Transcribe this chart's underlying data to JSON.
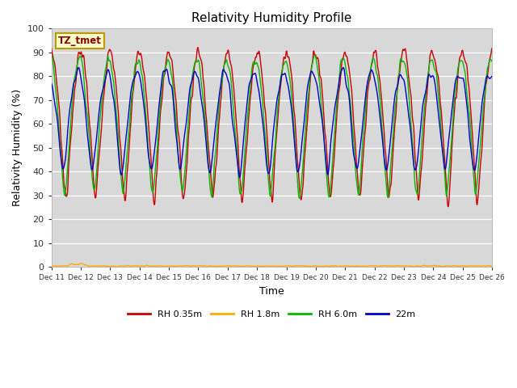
{
  "title": "Relativity Humidity Profile",
  "xlabel": "Time",
  "ylabel": "Relativity Humidity (%)",
  "ylim": [
    0,
    100
  ],
  "ytick_positions": [
    0,
    10,
    20,
    30,
    40,
    50,
    60,
    70,
    80,
    90,
    100
  ],
  "xtick_labels_top": [
    "Dec 11",
    "Dec 12",
    "Dec 13",
    "Dec 14",
    "Dec 15",
    "Dec 16",
    "Dec 17",
    "Dec 18",
    "Dec 19",
    "Dec 20",
    "Dec 21",
    "Dec 22",
    "Dec 23",
    "Dec 24",
    "Dec 25",
    "Dec 26"
  ],
  "legend_labels": [
    "RH 0.35m",
    "RH 1.8m",
    "RH 6.0m",
    "22m"
  ],
  "line_colors": [
    "#cc0000",
    "#ffaa00",
    "#00bb00",
    "#0000cc"
  ],
  "annotation_text": "TZ_tmet",
  "annotation_color": "#880000",
  "annotation_bg": "#ffffcc",
  "plot_bg_color": "#d8d8d8",
  "grid_color": "#ffffff",
  "n_days": 25,
  "n_per_day": 48
}
